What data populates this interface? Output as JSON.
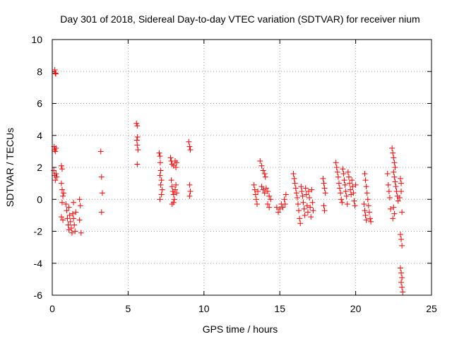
{
  "chart_data": {
    "type": "scatter",
    "title": "Day 301 of 2018, Sidereal Day-to-day VTEC variation (SDTVAR) for receiver nium",
    "xlabel": "GPS time / hours",
    "ylabel": "SDTVAR / TECUs",
    "xlim": [
      0,
      25
    ],
    "ylim": [
      -6,
      10
    ],
    "xticks": [
      0,
      5,
      10,
      15,
      20,
      25
    ],
    "yticks": [
      -6,
      -4,
      -2,
      0,
      2,
      4,
      6,
      8,
      10
    ],
    "xtick_labels": [
      "0",
      "5",
      "10",
      "15",
      "20",
      "25"
    ],
    "ytick_labels": [
      "-6",
      "-4",
      "-2",
      "0",
      "2",
      "4",
      "6",
      "8",
      "10"
    ],
    "grid": true,
    "marker": "+",
    "color": "#ff0000",
    "series": [
      {
        "name": "SDTVAR",
        "points": [
          [
            0.17,
            8.1
          ],
          [
            0.2,
            7.9
          ],
          [
            0.23,
            7.85
          ],
          [
            0.12,
            3.3
          ],
          [
            0.15,
            3.1
          ],
          [
            0.2,
            3.0
          ],
          [
            0.25,
            3.2
          ],
          [
            0.1,
            1.8
          ],
          [
            0.15,
            1.5
          ],
          [
            0.2,
            1.2
          ],
          [
            0.25,
            1.6
          ],
          [
            0.3,
            1.4
          ],
          [
            0.6,
            2.1
          ],
          [
            0.65,
            1.9
          ],
          [
            0.6,
            1.0
          ],
          [
            0.65,
            0.6
          ],
          [
            0.7,
            0.2
          ],
          [
            0.75,
            0.4
          ],
          [
            0.65,
            -0.2
          ],
          [
            0.6,
            -1.1
          ],
          [
            0.7,
            -1.3
          ],
          [
            0.9,
            -0.3
          ],
          [
            0.95,
            -0.7
          ],
          [
            1.0,
            -1.2
          ],
          [
            1.05,
            -1.6
          ],
          [
            1.1,
            -1.9
          ],
          [
            1.1,
            -0.5
          ],
          [
            1.15,
            -1.0
          ],
          [
            1.2,
            -1.4
          ],
          [
            1.25,
            -1.8
          ],
          [
            1.3,
            -2.1
          ],
          [
            1.35,
            -0.9
          ],
          [
            1.4,
            -1.2
          ],
          [
            1.45,
            -1.6
          ],
          [
            1.5,
            -2.0
          ],
          [
            1.55,
            -0.8
          ],
          [
            1.4,
            -0.2
          ],
          [
            1.8,
            0.0
          ],
          [
            1.85,
            -0.4
          ],
          [
            1.8,
            -1.3
          ],
          [
            1.9,
            -2.1
          ],
          [
            3.2,
            3.0
          ],
          [
            3.25,
            1.4
          ],
          [
            3.3,
            0.4
          ],
          [
            3.25,
            -0.8
          ],
          [
            5.55,
            4.75
          ],
          [
            5.6,
            4.6
          ],
          [
            5.62,
            3.9
          ],
          [
            5.58,
            3.7
          ],
          [
            5.6,
            3.4
          ],
          [
            5.65,
            3.1
          ],
          [
            5.6,
            2.2
          ],
          [
            7.05,
            2.9
          ],
          [
            7.1,
            2.7
          ],
          [
            7.12,
            2.3
          ],
          [
            7.15,
            1.8
          ],
          [
            7.1,
            1.5
          ],
          [
            7.2,
            1.2
          ],
          [
            7.15,
            0.9
          ],
          [
            7.25,
            0.6
          ],
          [
            7.2,
            0.3
          ],
          [
            7.1,
            0.0
          ],
          [
            7.8,
            2.6
          ],
          [
            7.85,
            2.4
          ],
          [
            7.9,
            2.2
          ],
          [
            8.0,
            2.1
          ],
          [
            8.1,
            2.4
          ],
          [
            8.2,
            2.3
          ],
          [
            8.15,
            2.0
          ],
          [
            7.85,
            1.2
          ],
          [
            7.9,
            0.8
          ],
          [
            7.95,
            0.5
          ],
          [
            8.0,
            0.3
          ],
          [
            8.05,
            0.0
          ],
          [
            8.1,
            0.6
          ],
          [
            8.15,
            0.9
          ],
          [
            8.2,
            0.4
          ],
          [
            8.0,
            -0.2
          ],
          [
            7.9,
            -0.3
          ],
          [
            9.0,
            3.6
          ],
          [
            9.05,
            3.3
          ],
          [
            9.1,
            3.1
          ],
          [
            9.05,
            0.9
          ],
          [
            9.1,
            0.5
          ],
          [
            9.05,
            0.2
          ],
          [
            13.3,
            0.9
          ],
          [
            13.35,
            0.6
          ],
          [
            13.4,
            0.3
          ],
          [
            13.45,
            0.0
          ],
          [
            13.5,
            -0.3
          ],
          [
            13.55,
            0.5
          ],
          [
            13.7,
            2.4
          ],
          [
            13.8,
            2.1
          ],
          [
            13.9,
            1.8
          ],
          [
            14.0,
            1.6
          ],
          [
            14.05,
            1.4
          ],
          [
            13.8,
            0.8
          ],
          [
            13.9,
            0.6
          ],
          [
            14.0,
            0.4
          ],
          [
            14.1,
            0.7
          ],
          [
            14.2,
            0.5
          ],
          [
            14.3,
            0.2
          ],
          [
            14.4,
            0.0
          ],
          [
            14.3,
            -0.5
          ],
          [
            14.2,
            -0.3
          ],
          [
            14.8,
            -0.5
          ],
          [
            14.9,
            -0.8
          ],
          [
            15.0,
            -0.6
          ],
          [
            15.1,
            -0.3
          ],
          [
            15.2,
            -0.5
          ],
          [
            15.3,
            0.0
          ],
          [
            15.35,
            -0.3
          ],
          [
            15.4,
            0.3
          ],
          [
            15.9,
            1.6
          ],
          [
            15.95,
            1.3
          ],
          [
            16.0,
            1.0
          ],
          [
            16.05,
            0.7
          ],
          [
            16.1,
            0.4
          ],
          [
            16.15,
            0.1
          ],
          [
            16.2,
            -0.3
          ],
          [
            16.25,
            -0.7
          ],
          [
            16.3,
            -1.2
          ],
          [
            16.35,
            -1.5
          ],
          [
            16.4,
            0.8
          ],
          [
            16.45,
            0.5
          ],
          [
            16.5,
            0.2
          ],
          [
            16.55,
            -0.2
          ],
          [
            16.6,
            -0.6
          ],
          [
            16.65,
            -1.0
          ],
          [
            16.7,
            0.7
          ],
          [
            16.75,
            0.3
          ],
          [
            16.8,
            -0.4
          ],
          [
            16.85,
            -0.8
          ],
          [
            16.9,
            0.5
          ],
          [
            16.95,
            0.1
          ],
          [
            17.0,
            -0.5
          ],
          [
            17.05,
            -1.1
          ],
          [
            17.1,
            0.6
          ],
          [
            17.15,
            -0.2
          ],
          [
            17.2,
            -0.7
          ],
          [
            17.85,
            1.3
          ],
          [
            17.9,
            1.0
          ],
          [
            17.95,
            0.7
          ],
          [
            18.0,
            0.4
          ],
          [
            17.9,
            -0.4
          ],
          [
            17.95,
            -0.7
          ],
          [
            18.7,
            2.3
          ],
          [
            18.75,
            2.0
          ],
          [
            18.8,
            1.7
          ],
          [
            18.85,
            1.4
          ],
          [
            18.9,
            1.0
          ],
          [
            18.95,
            0.7
          ],
          [
            19.0,
            0.4
          ],
          [
            19.05,
            0.0
          ],
          [
            19.1,
            -0.2
          ],
          [
            19.15,
            1.9
          ],
          [
            19.2,
            1.6
          ],
          [
            19.25,
            1.2
          ],
          [
            19.3,
            0.9
          ],
          [
            19.35,
            0.5
          ],
          [
            19.4,
            0.2
          ],
          [
            19.45,
            -0.3
          ],
          [
            19.5,
            1.7
          ],
          [
            19.55,
            1.4
          ],
          [
            19.6,
            1.0
          ],
          [
            19.65,
            0.6
          ],
          [
            19.7,
            0.3
          ],
          [
            19.75,
            1.2
          ],
          [
            19.8,
            0.8
          ],
          [
            19.85,
            0.4
          ],
          [
            19.9,
            -0.1
          ],
          [
            19.95,
            -0.4
          ],
          [
            20.0,
            0.9
          ],
          [
            20.6,
            1.6
          ],
          [
            20.65,
            1.2
          ],
          [
            20.7,
            0.8
          ],
          [
            20.75,
            0.4
          ],
          [
            20.8,
            0.0
          ],
          [
            20.85,
            -0.4
          ],
          [
            20.9,
            -0.8
          ],
          [
            20.95,
            -1.2
          ],
          [
            21.0,
            -1.4
          ],
          [
            20.55,
            -0.3
          ],
          [
            20.6,
            -0.7
          ],
          [
            20.65,
            -1.0
          ],
          [
            20.7,
            -1.3
          ],
          [
            22.1,
            1.6
          ],
          [
            22.15,
            0.9
          ],
          [
            22.2,
            0.5
          ],
          [
            22.25,
            0.1
          ],
          [
            22.3,
            -0.6
          ],
          [
            22.4,
            3.2
          ],
          [
            22.45,
            2.9
          ],
          [
            22.5,
            2.6
          ],
          [
            22.55,
            2.3
          ],
          [
            22.6,
            2.0
          ],
          [
            22.5,
            1.7
          ],
          [
            22.55,
            1.4
          ],
          [
            22.6,
            1.1
          ],
          [
            22.65,
            0.8
          ],
          [
            22.7,
            0.5
          ],
          [
            22.75,
            0.2
          ],
          [
            22.8,
            -0.1
          ],
          [
            22.5,
            -0.5
          ],
          [
            22.55,
            -0.9
          ],
          [
            22.45,
            -1.2
          ],
          [
            22.95,
            1.3
          ],
          [
            23.0,
            1.0
          ],
          [
            23.0,
            0.5
          ],
          [
            22.9,
            0.1
          ],
          [
            23.05,
            -0.8
          ],
          [
            22.95,
            -2.2
          ],
          [
            23.0,
            -2.5
          ],
          [
            23.05,
            -2.9
          ],
          [
            22.95,
            -4.3
          ],
          [
            23.0,
            -4.6
          ],
          [
            23.05,
            -4.9
          ],
          [
            23.0,
            -5.2
          ],
          [
            23.05,
            -5.5
          ],
          [
            23.1,
            -5.8
          ]
        ]
      }
    ]
  }
}
